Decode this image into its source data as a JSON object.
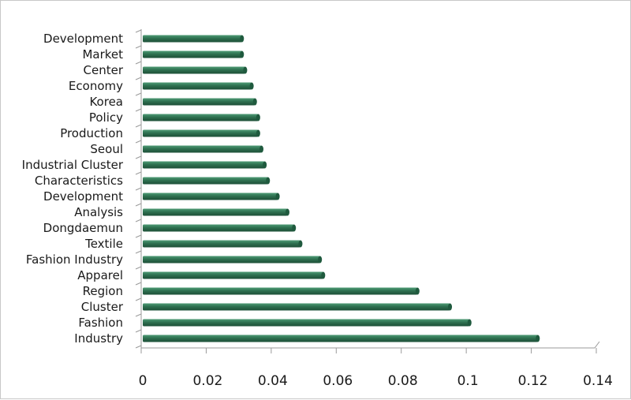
{
  "chart_data": {
    "type": "bar",
    "orientation": "horizontal",
    "title": "",
    "xlabel": "",
    "ylabel": "",
    "categories": [
      "Development",
      "Market",
      "Center",
      "Economy",
      "Korea",
      "Policy",
      "Production",
      "Seoul",
      "Industrial Cluster",
      "Characteristics",
      "Development",
      "Analysis",
      "Dongdaemun",
      "Textile",
      "Fashion Industry",
      "Apparel",
      "Region",
      "Cluster",
      "Fashion",
      "Industry"
    ],
    "values": [
      0.031,
      0.031,
      0.032,
      0.034,
      0.035,
      0.036,
      0.036,
      0.037,
      0.038,
      0.039,
      0.042,
      0.045,
      0.047,
      0.049,
      0.055,
      0.056,
      0.085,
      0.095,
      0.101,
      0.122
    ],
    "xlim": [
      0,
      0.14
    ],
    "x_ticks": [
      "0",
      "0.02",
      "0.04",
      "0.06",
      "0.08",
      "0.1",
      "0.12",
      "0.14"
    ],
    "bar_color": "#2e7050",
    "grid": false,
    "legend": "none"
  }
}
